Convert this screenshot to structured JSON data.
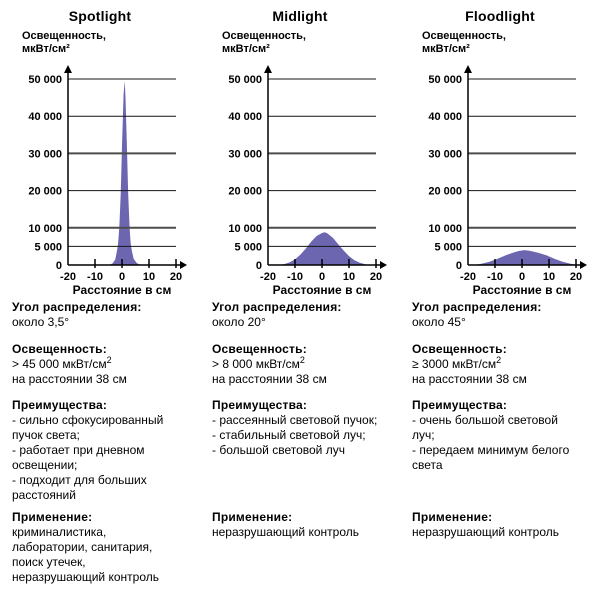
{
  "colors": {
    "area_fill": "#6c66b0",
    "axis": "#000000",
    "grid": "#141414",
    "grid_thick": "#4d4d4d",
    "text": "#000000",
    "background": "#ffffff"
  },
  "columns": [
    {
      "title": "Spotlight",
      "ylabel_line1": "Освещенность,",
      "ylabel_line2": "мкВт/см²",
      "sections": {
        "angle": {
          "heading": "Угол распределения:",
          "value": "около 3,5°"
        },
        "illuminance": {
          "heading": "Освещенность:",
          "value_prefix": "> 45 000 мкВт/см",
          "value_sup": "2",
          "line2": "на расстоянии 38 см"
        },
        "advantages": {
          "heading": "Преимущества:",
          "items": [
            "- сильно сфокусированный пучок света;",
            "- работает при дневном освещении;",
            "- подходит для больших расстояний"
          ]
        },
        "application": {
          "heading": "Применение:",
          "lines": [
            "криминалистика,",
            "лаборатории, санитария,",
            "поиск утечек,",
            "неразрушающий контроль"
          ]
        }
      }
    },
    {
      "title": "Midlight",
      "ylabel_line1": "Освещенность,",
      "ylabel_line2": "мкВт/см²",
      "sections": {
        "angle": {
          "heading": "Угол распределения:",
          "value": "около 20°"
        },
        "illuminance": {
          "heading": "Освещенность:",
          "value_prefix": "> 8 000 мкВт/см",
          "value_sup": "2",
          "line2": "на расстоянии 38 см"
        },
        "advantages": {
          "heading": "Преимущества:",
          "items": [
            "- рассеянный световой пучок;",
            "- стабильный световой луч;",
            "- большой световой луч"
          ]
        },
        "application": {
          "heading": "Применение:",
          "lines": [
            "неразрушающий контроль"
          ]
        }
      }
    },
    {
      "title": "Floodlight",
      "ylabel_line1": "Освещенность,",
      "ylabel_line2": "мкВт/см²",
      "sections": {
        "angle": {
          "heading": "Угол распределения:",
          "value": "около 45°"
        },
        "illuminance": {
          "heading": "Освещенность:",
          "value_prefix": "≥ 3000 мкВт/см",
          "value_sup": "2",
          "line2": "на расстоянии 38 см"
        },
        "advantages": {
          "heading": "Преимущества:",
          "items": [
            "- очень большой световой луч;",
            "- передаем минимум белого света"
          ]
        },
        "application": {
          "heading": "Применение:",
          "lines": [
            "неразрушающий контроль"
          ]
        }
      }
    }
  ],
  "chart_data": [
    {
      "type": "area",
      "title": "Spotlight",
      "xlabel": "Расстояние в см",
      "ylabel": "Освещенность, мкВт/см²",
      "xlim": [
        -20,
        20
      ],
      "ylim": [
        0,
        50000
      ],
      "grid": true,
      "legend": "none",
      "xticks": [
        -20,
        -10,
        0,
        10,
        20
      ],
      "xtick_labels": [
        "-20",
        "-10",
        "0",
        "10",
        "20"
      ],
      "yticks": [
        0,
        5000,
        10000,
        20000,
        30000,
        40000,
        50000
      ],
      "ytick_labels": [
        "0",
        "5 000",
        "10 000",
        "20 000",
        "30 000",
        "40 000",
        "50 000"
      ],
      "thick_gridlines": [
        10000,
        30000
      ],
      "peak": {
        "x": 1,
        "y": 49500
      },
      "points": [
        [
          -5,
          0
        ],
        [
          -3.5,
          400
        ],
        [
          -2.5,
          1500
        ],
        [
          -1.8,
          4000
        ],
        [
          -1.5,
          5500
        ],
        [
          -1,
          10000
        ],
        [
          -0.5,
          19000
        ],
        [
          0,
          32000
        ],
        [
          0.6,
          46000
        ],
        [
          1,
          49500
        ],
        [
          1.3,
          45000
        ],
        [
          1.8,
          32000
        ],
        [
          2.3,
          19000
        ],
        [
          2.8,
          10000
        ],
        [
          3.2,
          6000
        ],
        [
          3.6,
          4000
        ],
        [
          4.3,
          1700
        ],
        [
          5.5,
          500
        ],
        [
          7,
          0
        ]
      ]
    },
    {
      "type": "area",
      "title": "Midlight",
      "xlabel": "Расстояние в см",
      "ylabel": "Освещенность, мкВт/см²",
      "xlim": [
        -20,
        20
      ],
      "ylim": [
        0,
        50000
      ],
      "grid": true,
      "legend": "none",
      "xticks": [
        -20,
        -10,
        0,
        10,
        20
      ],
      "xtick_labels": [
        "-20",
        "-10",
        "0",
        "10",
        "20"
      ],
      "yticks": [
        0,
        5000,
        10000,
        20000,
        30000,
        40000,
        50000
      ],
      "ytick_labels": [
        "0",
        "5 000",
        "10 000",
        "20 000",
        "30 000",
        "40 000",
        "50 000"
      ],
      "thick_gridlines": [
        10000,
        30000
      ],
      "peak": {
        "x": 1,
        "y": 8800
      },
      "points": [
        [
          -17,
          0
        ],
        [
          -14,
          250
        ],
        [
          -12,
          700
        ],
        [
          -10,
          1500
        ],
        [
          -8,
          2800
        ],
        [
          -6,
          4400
        ],
        [
          -4,
          6300
        ],
        [
          -2,
          7800
        ],
        [
          0,
          8600
        ],
        [
          1,
          8800
        ],
        [
          2,
          8500
        ],
        [
          4,
          7300
        ],
        [
          6,
          5600
        ],
        [
          8,
          3900
        ],
        [
          10,
          2400
        ],
        [
          12,
          1300
        ],
        [
          14,
          600
        ],
        [
          16,
          200
        ],
        [
          18,
          0
        ]
      ]
    },
    {
      "type": "area",
      "title": "Floodlight",
      "xlabel": "Расстояние в см",
      "ylabel": "Освещенность, мкВт/см²",
      "xlim": [
        -20,
        20
      ],
      "ylim": [
        0,
        50000
      ],
      "grid": true,
      "legend": "none",
      "xticks": [
        -20,
        -10,
        0,
        10,
        20
      ],
      "xtick_labels": [
        "-20",
        "-10",
        "0",
        "10",
        "20"
      ],
      "yticks": [
        0,
        5000,
        10000,
        20000,
        30000,
        40000,
        50000
      ],
      "ytick_labels": [
        "0",
        "5 000",
        "10 000",
        "20 000",
        "30 000",
        "40 000",
        "50 000"
      ],
      "thick_gridlines": [
        10000,
        30000
      ],
      "peak": {
        "x": 1,
        "y": 4000
      },
      "points": [
        [
          -18,
          0
        ],
        [
          -15,
          350
        ],
        [
          -12,
          900
        ],
        [
          -9,
          1700
        ],
        [
          -6,
          2600
        ],
        [
          -3,
          3400
        ],
        [
          -1,
          3800
        ],
        [
          1,
          4000
        ],
        [
          3,
          3800
        ],
        [
          6,
          3300
        ],
        [
          9,
          2600
        ],
        [
          12,
          1700
        ],
        [
          15,
          900
        ],
        [
          18,
          350
        ],
        [
          20,
          100
        ],
        [
          20,
          0
        ]
      ]
    }
  ]
}
